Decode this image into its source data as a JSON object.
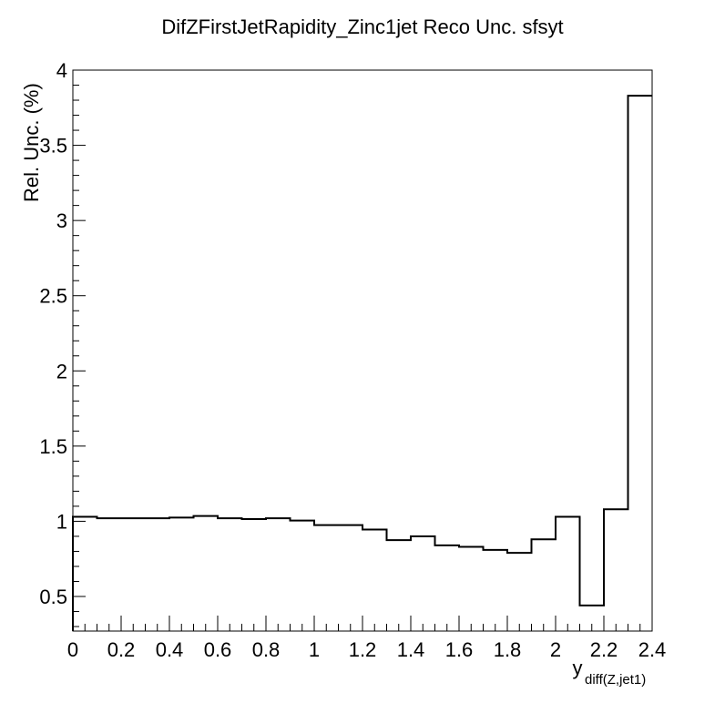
{
  "chart_data": {
    "type": "histogram-step",
    "title": "DifZFirstJetRapidity_Zinc1jet Reco Unc. sfsyt",
    "ylabel": "Rel. Unc. (%)",
    "xlabel_main": "y",
    "xlabel_sub": "diff(Z,jet1)",
    "xlim": [
      0,
      2.4
    ],
    "ylim": [
      0.27,
      4.0
    ],
    "x_ticks": [
      "0",
      "0.2",
      "0.4",
      "0.6",
      "0.8",
      "1",
      "1.2",
      "1.4",
      "1.6",
      "1.8",
      "2",
      "2.2",
      "2.4"
    ],
    "y_ticks": [
      "0.5",
      "1",
      "1.5",
      "2",
      "2.5",
      "3",
      "3.5",
      "4"
    ],
    "bin_edges": [
      0,
      0.1,
      0.2,
      0.3,
      0.4,
      0.5,
      0.6,
      0.7,
      0.8,
      0.9,
      1.0,
      1.1,
      1.2,
      1.3,
      1.4,
      1.5,
      1.6,
      1.7,
      1.8,
      1.9,
      2.0,
      2.1,
      2.2,
      2.3,
      2.4
    ],
    "values": [
      1.03,
      1.02,
      1.02,
      1.02,
      1.025,
      1.035,
      1.02,
      1.015,
      1.02,
      1.005,
      0.975,
      0.975,
      0.945,
      0.875,
      0.9,
      0.84,
      0.83,
      0.81,
      0.79,
      0.88,
      1.03,
      0.44,
      1.08,
      3.83
    ],
    "grid": false,
    "legend": "none",
    "line_color": "#000000"
  }
}
